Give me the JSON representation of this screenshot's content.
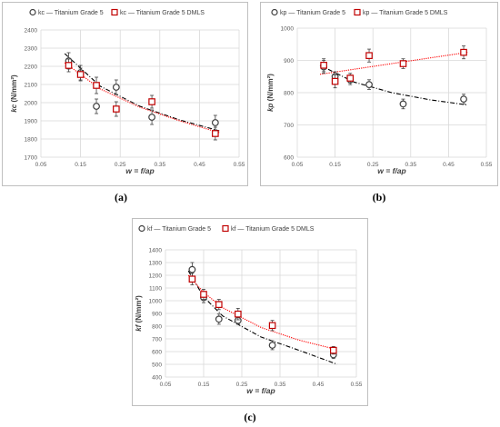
{
  "captions": [
    "(a)",
    "(b)",
    "(c)"
  ],
  "chart_data": [
    {
      "type": "scatter",
      "panel": "a",
      "ylabel": "kc (N/mm²)",
      "ylabel_italic_part": "kc",
      "ylabel_unit": " (N/mm²)",
      "xlabel": "w = f/ap",
      "x_ticks": [
        "0.05",
        "0.15",
        "0.25",
        "0.35",
        "0.45",
        "0.55"
      ],
      "y_ticks": [
        "1700",
        "1800",
        "1900",
        "2000",
        "2100",
        "2200",
        "2300",
        "2400"
      ],
      "xlim": [
        0.05,
        0.55
      ],
      "ylim": [
        1700,
        2400
      ],
      "grid": true,
      "legend_position": "top",
      "series": [
        {
          "name": "kc — Titanium Grade 5",
          "marker": "circle",
          "color": "#404040",
          "x": [
            0.12,
            0.15,
            0.19,
            0.24,
            0.33,
            0.49
          ],
          "y": [
            2230,
            2165,
            1980,
            2085,
            1920,
            1890
          ],
          "err": [
            45,
            40,
            40,
            40,
            40,
            40
          ],
          "trend_style": "dashdot",
          "trend_color": "#000000",
          "trend": [
            [
              0.11,
              2270
            ],
            [
              0.2,
              2090
            ],
            [
              0.3,
              1980
            ],
            [
              0.4,
              1905
            ],
            [
              0.5,
              1845
            ]
          ]
        },
        {
          "name": "kc — Titanium Grade 5 DMLS",
          "marker": "square",
          "color": "#c00000",
          "x": [
            0.12,
            0.15,
            0.19,
            0.24,
            0.33,
            0.49
          ],
          "y": [
            2205,
            2155,
            2095,
            1965,
            2005,
            1830
          ],
          "err": [
            35,
            35,
            45,
            40,
            35,
            35
          ],
          "trend_style": "dotted",
          "trend_color": "#ff0000",
          "trend": [
            [
              0.11,
              2220
            ],
            [
              0.2,
              2075
            ],
            [
              0.3,
              1975
            ],
            [
              0.4,
              1900
            ],
            [
              0.5,
              1835
            ]
          ]
        }
      ]
    },
    {
      "type": "scatter",
      "panel": "b",
      "ylabel": "kp (N/mm²)",
      "ylabel_italic_part": "kp",
      "ylabel_unit": " (N/mm²)",
      "xlabel": "w = f/ap",
      "x_ticks": [
        "0.05",
        "0.15",
        "0.25",
        "0.35",
        "0.45",
        "0.55"
      ],
      "y_ticks": [
        "600",
        "700",
        "800",
        "900",
        "1000"
      ],
      "xlim": [
        0.05,
        0.55
      ],
      "ylim": [
        600,
        1000
      ],
      "grid": true,
      "legend_position": "top",
      "series": [
        {
          "name": "kp — Titanium Grade 5",
          "marker": "circle",
          "color": "#404040",
          "x": [
            0.12,
            0.15,
            0.19,
            0.24,
            0.33,
            0.49
          ],
          "y": [
            880,
            850,
            840,
            825,
            765,
            780
          ],
          "err": [
            20,
            15,
            15,
            15,
            15,
            15
          ],
          "trend_style": "dashdot",
          "trend_color": "#000000",
          "trend": [
            [
              0.11,
              885
            ],
            [
              0.2,
              833
            ],
            [
              0.3,
              800
            ],
            [
              0.4,
              778
            ],
            [
              0.5,
              762
            ]
          ]
        },
        {
          "name": "kp — Titanium Grade 5 DMLS",
          "marker": "square",
          "color": "#c00000",
          "x": [
            0.12,
            0.15,
            0.19,
            0.24,
            0.33,
            0.49
          ],
          "y": [
            885,
            835,
            845,
            915,
            890,
            925
          ],
          "err": [
            20,
            20,
            15,
            20,
            15,
            20
          ],
          "trend_style": "dotted",
          "trend_color": "#ff0000",
          "trend": [
            [
              0.11,
              857
            ],
            [
              0.5,
              925
            ]
          ]
        }
      ]
    },
    {
      "type": "scatter",
      "panel": "c",
      "ylabel": "kf (N/mm²)",
      "ylabel_italic_part": "kf",
      "ylabel_unit": " (N/mm²)",
      "xlabel": "w = f/ap",
      "x_ticks": [
        "0.05",
        "0.15",
        "0.25",
        "0.35",
        "0.45",
        "0.55"
      ],
      "y_ticks": [
        "400",
        "500",
        "600",
        "700",
        "800",
        "900",
        "1000",
        "1100",
        "1200",
        "1300",
        "1400"
      ],
      "xlim": [
        0.05,
        0.55
      ],
      "ylim": [
        400,
        1400
      ],
      "grid": true,
      "legend_position": "top",
      "series": [
        {
          "name": "kf — Titanium Grade 5",
          "marker": "circle",
          "color": "#404040",
          "x": [
            0.12,
            0.15,
            0.19,
            0.24,
            0.33,
            0.49
          ],
          "y": [
            1245,
            1025,
            855,
            845,
            650,
            575
          ],
          "err": [
            55,
            40,
            40,
            30,
            35,
            30
          ],
          "trend_style": "dashdot",
          "trend_color": "#000000",
          "trend": [
            [
              0.11,
              1235
            ],
            [
              0.15,
              1030
            ],
            [
              0.2,
              880
            ],
            [
              0.3,
              715
            ],
            [
              0.4,
              610
            ],
            [
              0.5,
              500
            ]
          ]
        },
        {
          "name": "kf — Titanium Grade 5 DMLS",
          "marker": "square",
          "color": "#c00000",
          "x": [
            0.12,
            0.15,
            0.19,
            0.24,
            0.33,
            0.49
          ],
          "y": [
            1170,
            1050,
            970,
            895,
            805,
            610
          ],
          "err": [
            45,
            40,
            40,
            45,
            40,
            30
          ],
          "trend_style": "dotted",
          "trend_color": "#ff0000",
          "trend": [
            [
              0.11,
              1200
            ],
            [
              0.15,
              1065
            ],
            [
              0.2,
              945
            ],
            [
              0.3,
              790
            ],
            [
              0.4,
              690
            ],
            [
              0.5,
              615
            ]
          ]
        }
      ]
    }
  ]
}
